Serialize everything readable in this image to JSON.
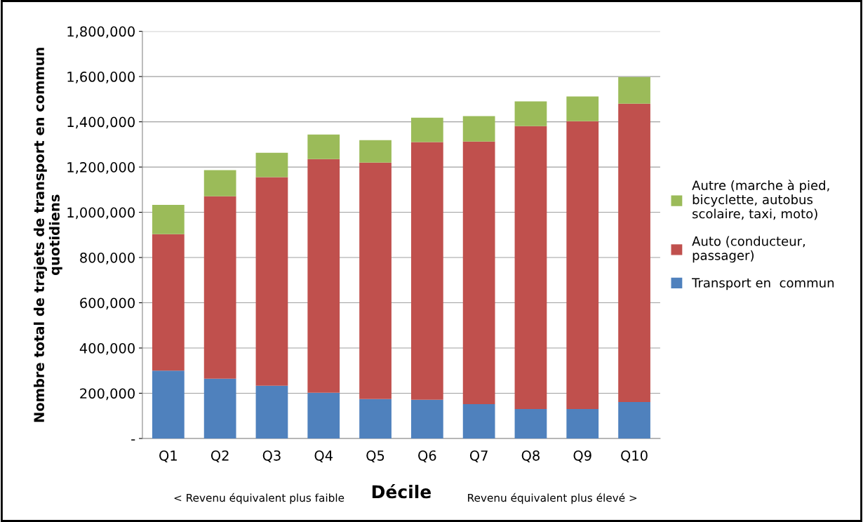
{
  "chart_data": {
    "type": "bar",
    "stacked": true,
    "categories": [
      "Q1",
      "Q2",
      "Q3",
      "Q4",
      "Q5",
      "Q6",
      "Q7",
      "Q8",
      "Q9",
      "Q10"
    ],
    "xlabel": "Décile",
    "ylabel": "Nombre total de trajets de transport en commun\nquotidiens",
    "series": [
      {
        "name": "Transport en  commun",
        "color": "#4f81bd",
        "values": [
          300000,
          264000,
          233000,
          202000,
          174000,
          171000,
          152000,
          130000,
          130000,
          161000
        ]
      },
      {
        "name": "Auto (conducteur,\npassager)",
        "color": "#c0504d",
        "values": [
          603000,
          807000,
          922000,
          1033000,
          1046000,
          1139000,
          1161000,
          1251000,
          1273000,
          1319000
        ]
      },
      {
        "name": "Autre (marche à pied,\nbicyclette, autobus\nscolaire, taxi, moto)",
        "color": "#9bbb59",
        "values": [
          130000,
          115000,
          108000,
          109000,
          99000,
          108000,
          112000,
          109000,
          109000,
          118000
        ]
      }
    ],
    "ylim": [
      0,
      1800000
    ],
    "yticks": [
      {
        "value": 0,
        "label": "-"
      },
      {
        "value": 200000,
        "label": "200,000"
      },
      {
        "value": 400000,
        "label": "400,000"
      },
      {
        "value": 600000,
        "label": "600,000"
      },
      {
        "value": 800000,
        "label": "800,000"
      },
      {
        "value": 1000000,
        "label": "1,000,000"
      },
      {
        "value": 1200000,
        "label": "1,200,000"
      },
      {
        "value": 1400000,
        "label": "1,400,000"
      },
      {
        "value": 1600000,
        "label": "1,600,000"
      },
      {
        "value": 1800000,
        "label": "1,800,000"
      }
    ],
    "grid": "y",
    "legend": "right",
    "annotations": [
      "< Revenu équivalent plus faible",
      "Revenu équivalent plus élevé >"
    ]
  }
}
